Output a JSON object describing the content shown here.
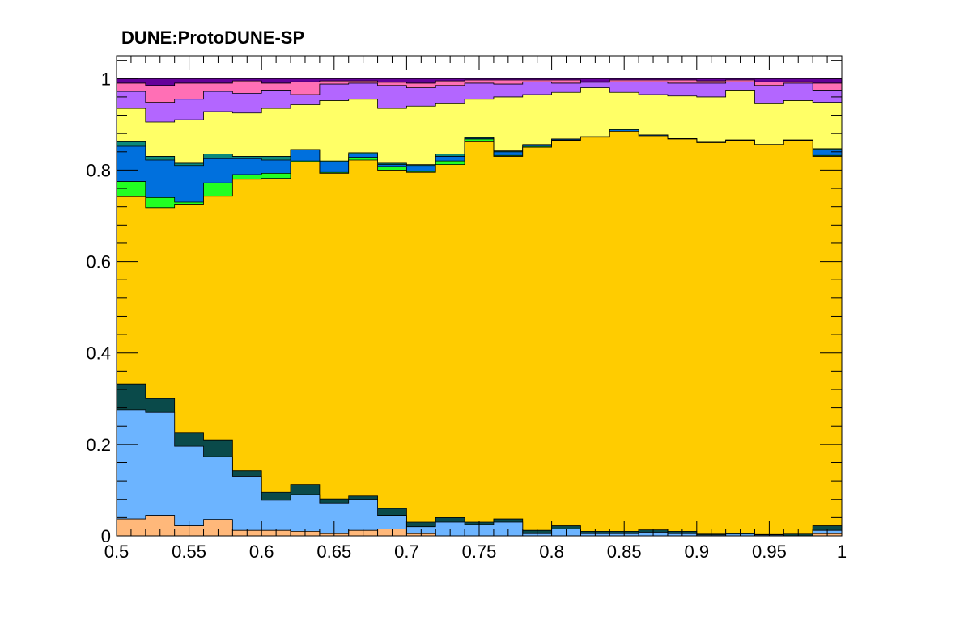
{
  "title": "DUNE:ProtoDUNE-SP",
  "chart_data": {
    "type": "area",
    "title": "DUNE:ProtoDUNE-SP",
    "xlabel": "",
    "ylabel": "",
    "xlim": [
      0.5,
      1.0
    ],
    "ylim": [
      0,
      1.05
    ],
    "grid": false,
    "stacked": true,
    "histogram_steps": true,
    "xticks": [
      "0.5",
      "0.55",
      "0.6",
      "0.65",
      "0.7",
      "0.75",
      "0.8",
      "0.85",
      "0.9",
      "0.95",
      "1"
    ],
    "yticks": [
      "0",
      "0.2",
      "0.4",
      "0.6",
      "0.8",
      "1"
    ],
    "x_bin_edges": [
      0.5,
      0.52,
      0.54,
      0.56,
      0.58,
      0.6,
      0.62,
      0.64,
      0.66,
      0.68,
      0.7,
      0.72,
      0.74,
      0.76,
      0.78,
      0.8,
      0.82,
      0.84,
      0.86,
      0.88,
      0.9,
      0.92,
      0.94,
      0.96,
      0.98,
      1.0
    ],
    "stack_top_edges": [
      {
        "color": "#ffb87a",
        "values": [
          0.037,
          0.045,
          0.022,
          0.036,
          0.012,
          0.012,
          0.01,
          0.005,
          0.012,
          0.015,
          0.005,
          0.0,
          0.0,
          0.0,
          0.0,
          0.0,
          0.0,
          0.0,
          0.0,
          0.0,
          0.0,
          0.0,
          0.0,
          0.0,
          0.005
        ]
      },
      {
        "color": "#6cb4ff",
        "values": [
          0.276,
          0.27,
          0.196,
          0.173,
          0.13,
          0.078,
          0.09,
          0.072,
          0.08,
          0.045,
          0.02,
          0.03,
          0.025,
          0.03,
          0.005,
          0.015,
          0.005,
          0.005,
          0.008,
          0.005,
          0.002,
          0.004,
          0.002,
          0.0,
          0.012
        ]
      },
      {
        "color": "#0a4a4a",
        "values": [
          0.332,
          0.3,
          0.225,
          0.21,
          0.142,
          0.095,
          0.112,
          0.081,
          0.087,
          0.06,
          0.03,
          0.04,
          0.03,
          0.037,
          0.012,
          0.022,
          0.01,
          0.01,
          0.013,
          0.01,
          0.004,
          0.006,
          0.003,
          0.004,
          0.022
        ]
      },
      {
        "color": "#ffcc00",
        "values": [
          0.742,
          0.718,
          0.724,
          0.743,
          0.78,
          0.782,
          0.818,
          0.793,
          0.822,
          0.8,
          0.795,
          0.812,
          0.862,
          0.83,
          0.85,
          0.865,
          0.872,
          0.885,
          0.875,
          0.868,
          0.86,
          0.865,
          0.855,
          0.865,
          0.83
        ]
      },
      {
        "color": "#22ff22",
        "values": [
          0.775,
          0.74,
          0.73,
          0.772,
          0.79,
          0.793,
          0.82,
          0.795,
          0.828,
          0.808,
          0.797,
          0.82,
          0.868,
          0.832,
          0.852,
          0.866,
          0.872,
          0.885,
          0.875,
          0.868,
          0.86,
          0.865,
          0.855,
          0.865,
          0.832
        ]
      },
      {
        "color": "#0070dd",
        "values": [
          0.852,
          0.822,
          0.81,
          0.825,
          0.825,
          0.822,
          0.845,
          0.818,
          0.835,
          0.812,
          0.81,
          0.83,
          0.87,
          0.84,
          0.855,
          0.868,
          0.873,
          0.888,
          0.877,
          0.869,
          0.861,
          0.866,
          0.856,
          0.866,
          0.845
        ]
      },
      {
        "color": "#0b8a7a",
        "values": [
          0.862,
          0.83,
          0.815,
          0.835,
          0.83,
          0.83,
          0.845,
          0.82,
          0.838,
          0.815,
          0.812,
          0.835,
          0.872,
          0.842,
          0.856,
          0.868,
          0.873,
          0.89,
          0.877,
          0.869,
          0.861,
          0.866,
          0.856,
          0.866,
          0.847
        ]
      },
      {
        "color": "#ffff66",
        "values": [
          0.935,
          0.905,
          0.91,
          0.928,
          0.925,
          0.935,
          0.943,
          0.952,
          0.955,
          0.935,
          0.94,
          0.945,
          0.955,
          0.96,
          0.965,
          0.97,
          0.98,
          0.97,
          0.965,
          0.962,
          0.96,
          0.975,
          0.945,
          0.952,
          0.948
        ]
      },
      {
        "color": "#b366ff",
        "values": [
          0.972,
          0.948,
          0.955,
          0.972,
          0.968,
          0.975,
          0.965,
          0.988,
          0.99,
          0.985,
          0.98,
          0.985,
          0.99,
          0.988,
          0.993,
          0.99,
          0.992,
          0.993,
          0.993,
          0.99,
          0.99,
          0.993,
          0.985,
          0.99,
          0.975
        ]
      },
      {
        "color": "#ff6fb5",
        "values": [
          0.99,
          0.985,
          0.99,
          0.99,
          0.995,
          0.99,
          0.993,
          0.995,
          0.995,
          0.992,
          0.99,
          0.995,
          0.997,
          0.997,
          0.997,
          0.997,
          0.993,
          0.997,
          0.997,
          0.997,
          0.995,
          0.997,
          0.993,
          0.993,
          0.99
        ]
      },
      {
        "color": "#660099",
        "values": [
          1,
          1,
          1,
          1,
          1,
          1,
          1,
          1,
          1,
          1,
          1,
          1,
          1,
          1,
          1,
          1,
          1,
          1,
          1,
          1,
          1,
          1,
          1,
          1,
          1
        ]
      }
    ]
  }
}
